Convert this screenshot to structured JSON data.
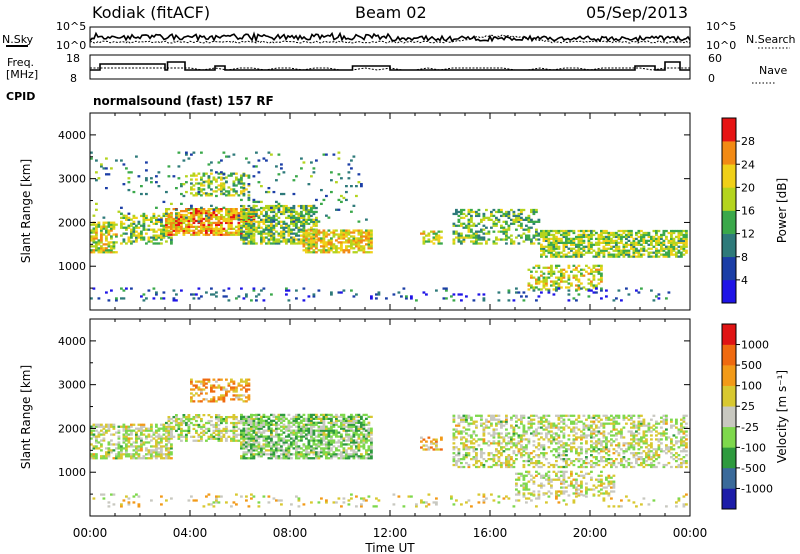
{
  "header": {
    "station": "Kodiak (fitACF)",
    "beam": "Beam 02",
    "date": "05/Sep/2013"
  },
  "summary": {
    "nsky_label": "N.Sky",
    "nsearch_label": "N.Search",
    "nsky_ticks": [
      "10^5",
      "10^0"
    ],
    "nsearch_ticks": [
      "10^5",
      "10^0"
    ],
    "freq_label_1": "Freq.",
    "freq_label_2": "[MHz]",
    "freq_ticks": [
      "18",
      "8"
    ],
    "nave_label": "Nave",
    "nave_ticks": [
      "60",
      "0"
    ],
    "cpid_label": "CPID",
    "cpid_text": "normalsound (fast) 157 RF"
  },
  "chart_data": [
    {
      "type": "heatmap",
      "panel": "power",
      "ylabel": "Slant Range [km]",
      "xlabel": "",
      "ylim": [
        0,
        4500
      ],
      "xlim_hours": [
        0,
        24
      ],
      "yticks": [
        "4000",
        "3000",
        "2000",
        "1000"
      ],
      "colorbar_label": "Power [dB]",
      "colorbar_ticks": [
        "28",
        "24",
        "20",
        "16",
        "12",
        "8",
        "4"
      ],
      "colors": [
        "#1f14e6",
        "#1b3ea6",
        "#2e7a7a",
        "#3aa84a",
        "#b4d41e",
        "#f0d018",
        "#f28a14",
        "#e61414"
      ],
      "blobs": [
        {
          "t": [
            0.0,
            1.0
          ],
          "r": [
            1300,
            2000
          ],
          "d": 0.7,
          "c": 0.62
        },
        {
          "t": [
            1.2,
            3.3
          ],
          "r": [
            1500,
            2200
          ],
          "d": 0.55,
          "c": 0.55
        },
        {
          "t": [
            3.0,
            6.5
          ],
          "r": [
            1700,
            2300
          ],
          "d": 0.8,
          "c": 0.78
        },
        {
          "t": [
            4.0,
            6.3
          ],
          "r": [
            2600,
            3100
          ],
          "d": 0.45,
          "c": 0.55
        },
        {
          "t": [
            6.0,
            9.0
          ],
          "r": [
            1500,
            2400
          ],
          "d": 0.65,
          "c": 0.5
        },
        {
          "t": [
            8.5,
            11.2
          ],
          "r": [
            1300,
            1800
          ],
          "d": 0.75,
          "c": 0.7
        },
        {
          "t": [
            13.2,
            14.0
          ],
          "r": [
            1500,
            1800
          ],
          "d": 0.55,
          "c": 0.6
        },
        {
          "t": [
            14.5,
            18.0
          ],
          "r": [
            1500,
            2300
          ],
          "d": 0.45,
          "c": 0.45
        },
        {
          "t": [
            18.0,
            23.9
          ],
          "r": [
            1200,
            1800
          ],
          "d": 0.7,
          "c": 0.55
        },
        {
          "t": [
            17.5,
            20.5
          ],
          "r": [
            450,
            1000
          ],
          "d": 0.45,
          "c": 0.62
        },
        {
          "t": [
            0.0,
            23.9
          ],
          "r": [
            200,
            500
          ],
          "d": 0.1,
          "c": 0.18
        },
        {
          "t": [
            0.0,
            11.0
          ],
          "r": [
            2000,
            3600
          ],
          "d": 0.06,
          "c": 0.35
        }
      ]
    },
    {
      "type": "heatmap",
      "panel": "velocity",
      "ylabel": "Slant Range [km]",
      "xlabel": "Time UT",
      "ylim": [
        0,
        4500
      ],
      "xlim_hours": [
        0,
        24
      ],
      "xticks": [
        "00:00",
        "04:00",
        "08:00",
        "12:00",
        "16:00",
        "20:00",
        "00:00"
      ],
      "yticks": [
        "4000",
        "3000",
        "2000",
        "1000"
      ],
      "colorbar_label": "Velocity [m s⁻¹]",
      "colorbar_ticks": [
        "1000",
        "500",
        "100",
        "25",
        "-25",
        "-100",
        "-500",
        "-1000"
      ],
      "colors": [
        "#1c1ca8",
        "#3a6a9a",
        "#2e9a3e",
        "#7ed84c",
        "#c8c8c0",
        "#d8c830",
        "#f29a18",
        "#ef6a10",
        "#e01414"
      ],
      "blobs": [
        {
          "t": [
            0.0,
            3.3
          ],
          "r": [
            1300,
            2100
          ],
          "d": 0.55,
          "c": 0.5
        },
        {
          "t": [
            3.0,
            6.5
          ],
          "r": [
            1700,
            2300
          ],
          "d": 0.5,
          "c": 0.48
        },
        {
          "t": [
            4.0,
            6.3
          ],
          "r": [
            2600,
            3100
          ],
          "d": 0.45,
          "c": 0.72
        },
        {
          "t": [
            6.0,
            11.2
          ],
          "r": [
            1300,
            2300
          ],
          "d": 0.7,
          "c": 0.4
        },
        {
          "t": [
            13.2,
            14.0
          ],
          "r": [
            1500,
            1800
          ],
          "d": 0.55,
          "c": 0.7
        },
        {
          "t": [
            14.5,
            23.9
          ],
          "r": [
            1100,
            2300
          ],
          "d": 0.45,
          "c": 0.5
        },
        {
          "t": [
            17.0,
            21.0
          ],
          "r": [
            450,
            1000
          ],
          "d": 0.4,
          "c": 0.52
        },
        {
          "t": [
            0.0,
            23.9
          ],
          "r": [
            200,
            500
          ],
          "d": 0.12,
          "c": 0.55
        }
      ]
    }
  ]
}
